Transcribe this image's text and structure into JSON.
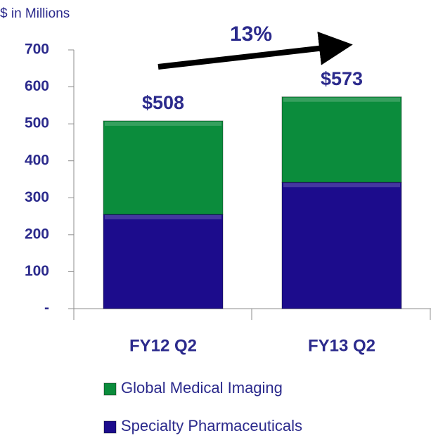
{
  "chart_data": {
    "type": "stacked_bar",
    "y_label": "$ in Millions",
    "annotation": "13%",
    "categories": [
      "FY12 Q2",
      "FY13 Q2"
    ],
    "series": [
      {
        "name": "Specialty Pharmaceuticals",
        "color": "#1c0c8c",
        "values": [
          255,
          342
        ]
      },
      {
        "name": "Global Medical Imaging",
        "color": "#0b8c3c",
        "values": [
          253,
          231
        ]
      }
    ],
    "totals": [
      508,
      573
    ],
    "total_labels": [
      "$508",
      "$573"
    ],
    "ylim": [
      0,
      700
    ],
    "yticks": [
      {
        "value": 0,
        "label": "-"
      },
      100,
      200,
      300,
      400,
      500,
      600,
      700
    ]
  }
}
